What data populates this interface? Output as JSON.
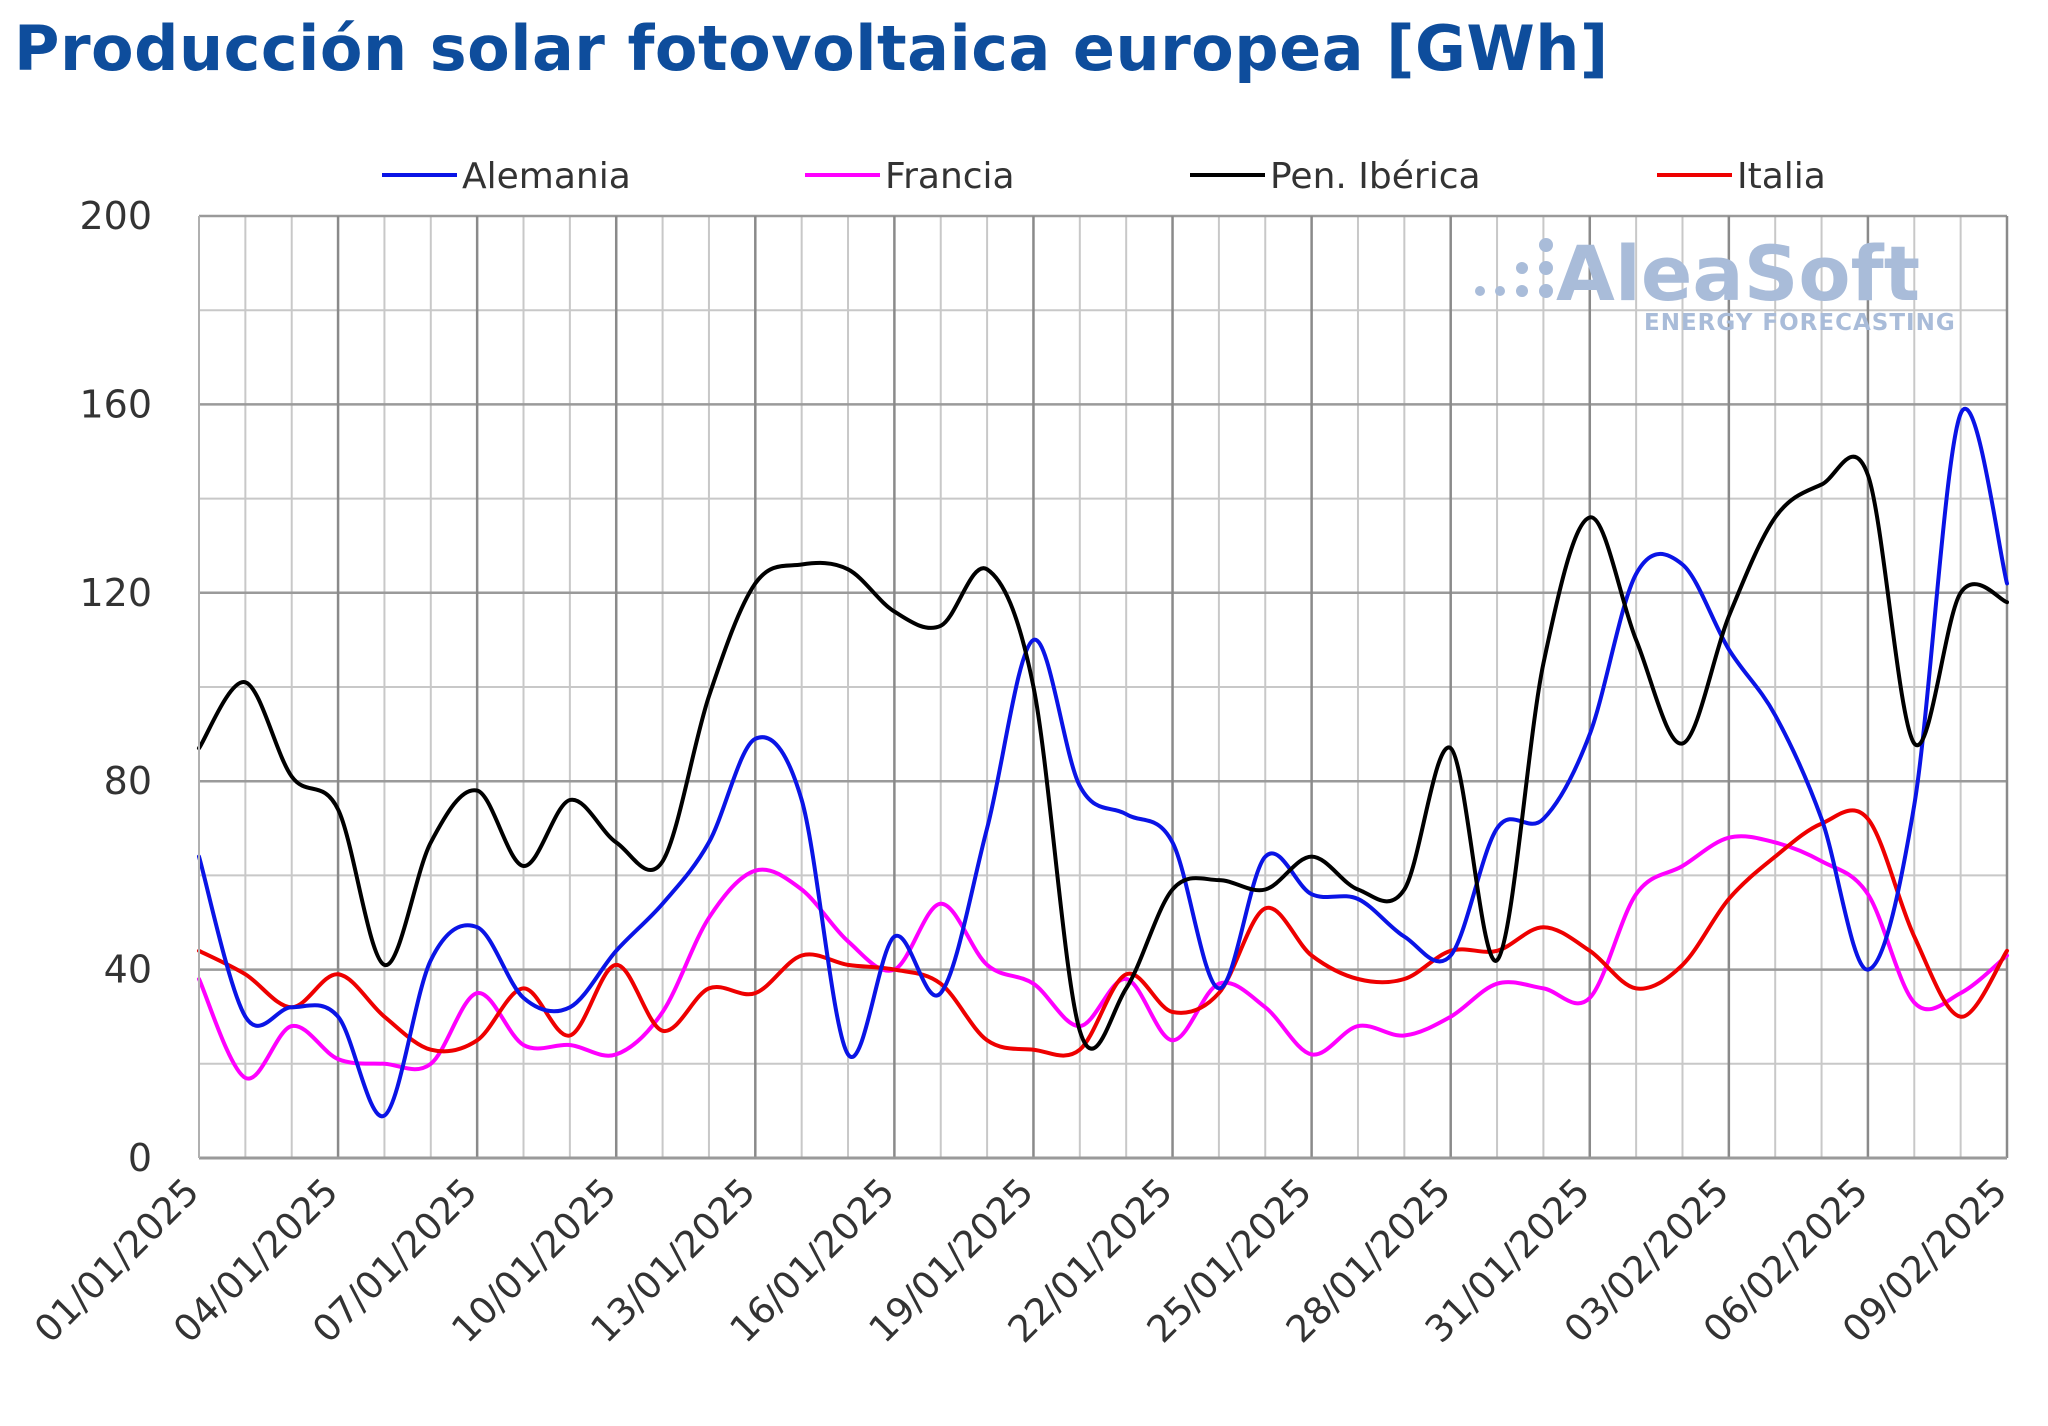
{
  "title": "Producción solar fotovoltaica europea [GWh]",
  "watermark": {
    "brand": "AleaSoft",
    "tagline": "ENERGY FORECASTING"
  },
  "chart_data": {
    "type": "line",
    "title": "Producción solar fotovoltaica europea [GWh]",
    "xlabel": "",
    "ylabel": "",
    "ylim": [
      0,
      200
    ],
    "yticks": [
      0,
      40,
      80,
      120,
      160,
      200
    ],
    "grid": true,
    "legend_position": "top",
    "x": [
      "01/01/2025",
      "02/01/2025",
      "03/01/2025",
      "04/01/2025",
      "05/01/2025",
      "06/01/2025",
      "07/01/2025",
      "08/01/2025",
      "09/01/2025",
      "10/01/2025",
      "11/01/2025",
      "12/01/2025",
      "13/01/2025",
      "14/01/2025",
      "15/01/2025",
      "16/01/2025",
      "17/01/2025",
      "18/01/2025",
      "19/01/2025",
      "20/01/2025",
      "21/01/2025",
      "22/01/2025",
      "23/01/2025",
      "24/01/2025",
      "25/01/2025",
      "26/01/2025",
      "27/01/2025",
      "28/01/2025",
      "29/01/2025",
      "30/01/2025",
      "31/01/2025",
      "01/02/2025",
      "02/02/2025",
      "03/02/2025",
      "04/02/2025",
      "05/02/2025",
      "06/02/2025",
      "07/02/2025",
      "08/02/2025",
      "09/02/2025"
    ],
    "x_tick_labels": [
      "01/01/2025",
      "04/01/2025",
      "07/01/2025",
      "10/01/2025",
      "13/01/2025",
      "16/01/2025",
      "19/01/2025",
      "22/01/2025",
      "25/01/2025",
      "28/01/2025",
      "31/01/2025",
      "03/02/2025",
      "06/02/2025",
      "09/02/2025"
    ],
    "series": [
      {
        "name": "Alemania",
        "color": "#0a14e6",
        "values": [
          64,
          30,
          32,
          30,
          9,
          42,
          49,
          34,
          32,
          44,
          54,
          67,
          89,
          76,
          22,
          47,
          35,
          70,
          110,
          79,
          73,
          67,
          36,
          64,
          56,
          55,
          47,
          43,
          70,
          72,
          90,
          124,
          126,
          108,
          94,
          72,
          40,
          75,
          158,
          122
        ]
      },
      {
        "name": "Francia",
        "color": "#ff00ff",
        "values": [
          38,
          17,
          28,
          21,
          20,
          20,
          35,
          24,
          24,
          22,
          31,
          51,
          61,
          57,
          46,
          40,
          54,
          41,
          37,
          28,
          38,
          25,
          37,
          32,
          22,
          28,
          26,
          30,
          37,
          36,
          34,
          56,
          62,
          68,
          67,
          63,
          56,
          33,
          35,
          43
        ]
      },
      {
        "name": "Pen. Ibérica",
        "color": "#000000",
        "values": [
          87,
          101,
          81,
          74,
          41,
          67,
          78,
          62,
          76,
          67,
          63,
          98,
          122,
          126,
          125,
          116,
          113,
          125,
          100,
          27,
          36,
          57,
          59,
          57,
          64,
          57,
          57,
          87,
          42,
          105,
          136,
          110,
          88,
          115,
          136,
          143,
          145,
          88,
          120,
          118
        ]
      },
      {
        "name": "Italia",
        "color": "#ee0000",
        "values": [
          44,
          39,
          32,
          39,
          30,
          23,
          25,
          36,
          26,
          41,
          27,
          36,
          35,
          43,
          41,
          40,
          37,
          25,
          23,
          23,
          39,
          31,
          35,
          53,
          43,
          38,
          38,
          44,
          44,
          49,
          44,
          36,
          41,
          55,
          64,
          71,
          72,
          47,
          30,
          44
        ]
      }
    ]
  }
}
